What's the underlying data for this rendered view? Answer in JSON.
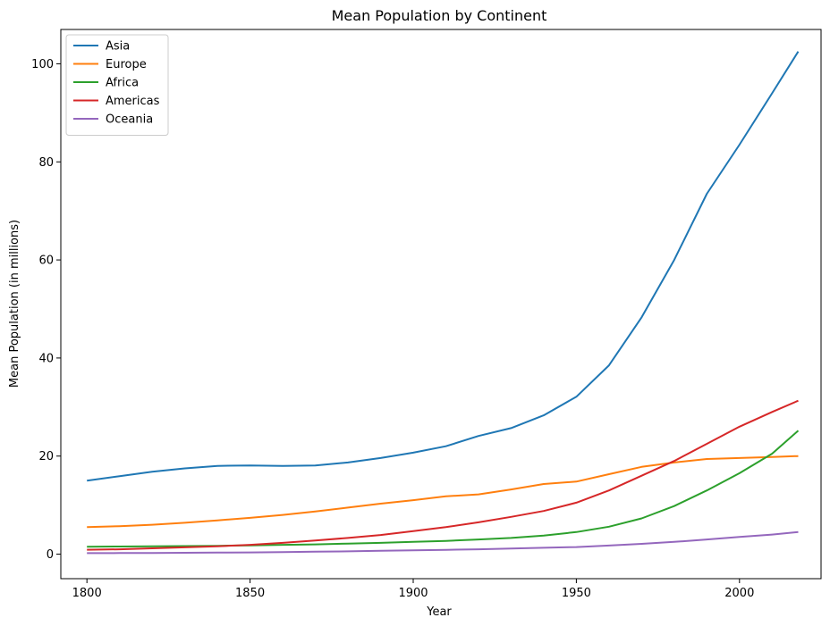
{
  "chart_data": {
    "type": "line",
    "title": "Mean Population by Continent",
    "xlabel": "Year",
    "ylabel": "Mean Population (in millions)",
    "xlim": [
      1792,
      2025
    ],
    "ylim": [
      -5,
      107
    ],
    "x_ticks": [
      1800,
      1850,
      1900,
      1950,
      2000
    ],
    "y_ticks": [
      0,
      20,
      40,
      60,
      80,
      100
    ],
    "grid": false,
    "legend_position": "top-left",
    "x": [
      1800,
      1810,
      1820,
      1830,
      1840,
      1850,
      1860,
      1870,
      1880,
      1890,
      1900,
      1910,
      1920,
      1930,
      1940,
      1950,
      1960,
      1970,
      1980,
      1990,
      2000,
      2010,
      2018
    ],
    "series": [
      {
        "name": "Asia",
        "color": "#1f77b4",
        "values": [
          15.0,
          15.9,
          16.8,
          17.5,
          18.0,
          18.1,
          18.0,
          18.1,
          18.7,
          19.6,
          20.7,
          22.0,
          24.1,
          25.7,
          28.3,
          32.1,
          38.5,
          48.3,
          60.0,
          73.5,
          83.5,
          94.0,
          102.5
        ]
      },
      {
        "name": "Europe",
        "color": "#ff7f0e",
        "values": [
          5.5,
          5.7,
          6.0,
          6.4,
          6.9,
          7.4,
          8.0,
          8.7,
          9.5,
          10.3,
          11.0,
          11.8,
          12.2,
          13.2,
          14.3,
          14.8,
          16.3,
          17.8,
          18.7,
          19.4,
          19.6,
          19.8,
          20.0
        ]
      },
      {
        "name": "Africa",
        "color": "#2ca02c",
        "values": [
          1.5,
          1.55,
          1.6,
          1.65,
          1.7,
          1.8,
          1.9,
          2.0,
          2.15,
          2.3,
          2.5,
          2.7,
          3.0,
          3.3,
          3.8,
          4.5,
          5.6,
          7.3,
          9.8,
          13.0,
          16.5,
          20.5,
          25.2
        ]
      },
      {
        "name": "Americas",
        "color": "#d62728",
        "values": [
          0.9,
          1.0,
          1.2,
          1.4,
          1.6,
          1.9,
          2.3,
          2.8,
          3.3,
          3.9,
          4.7,
          5.5,
          6.5,
          7.6,
          8.8,
          10.5,
          13.0,
          16.0,
          19.0,
          22.5,
          26.0,
          29.0,
          31.3
        ]
      },
      {
        "name": "Oceania",
        "color": "#9467bd",
        "values": [
          0.2,
          0.22,
          0.25,
          0.28,
          0.32,
          0.36,
          0.42,
          0.5,
          0.58,
          0.68,
          0.78,
          0.88,
          1.0,
          1.15,
          1.3,
          1.45,
          1.75,
          2.1,
          2.5,
          3.0,
          3.5,
          4.0,
          4.5
        ]
      }
    ]
  }
}
